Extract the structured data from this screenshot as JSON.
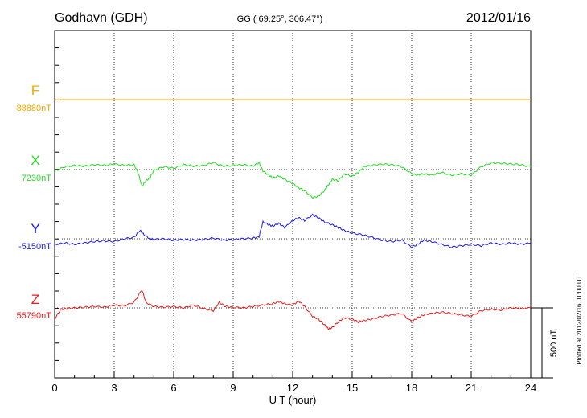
{
  "header": {
    "station": "Godhavn (GDH)",
    "coords": "GG ( 69.25°, 306.47°)",
    "date": "2012/01/16"
  },
  "side_note": "Plotted at 2012/02/16 01:00 UT",
  "scale_bar_label": "500 nT",
  "chart_data": {
    "type": "line",
    "xlabel": "U T (hour)",
    "x_ticks": [
      0,
      3,
      6,
      9,
      12,
      15,
      18,
      21,
      24
    ],
    "xlim": [
      0,
      24
    ],
    "scale_bar_nT": 500,
    "grid": "dotted vertical lines at every 3 hours",
    "series": [
      {
        "name": "F",
        "baseline_label": "88880nT",
        "color": "#f5a800",
        "points": [
          [
            0,
            0
          ],
          [
            24,
            0
          ]
        ]
      },
      {
        "name": "X",
        "baseline_label": "7230nT",
        "color": "#22dd22",
        "points": [
          [
            0,
            -10
          ],
          [
            0.5,
            20
          ],
          [
            1,
            30
          ],
          [
            1.5,
            25
          ],
          [
            2,
            35
          ],
          [
            2.5,
            30
          ],
          [
            3,
            40
          ],
          [
            3.5,
            30
          ],
          [
            4,
            35
          ],
          [
            4.2,
            -20
          ],
          [
            4.4,
            -120
          ],
          [
            4.6,
            -80
          ],
          [
            4.8,
            -60
          ],
          [
            5,
            -5
          ],
          [
            5.5,
            20
          ],
          [
            6,
            10
          ],
          [
            6.5,
            35
          ],
          [
            7,
            25
          ],
          [
            7.5,
            30
          ],
          [
            8,
            50
          ],
          [
            8.5,
            25
          ],
          [
            9,
            30
          ],
          [
            9.5,
            35
          ],
          [
            10,
            25
          ],
          [
            10.3,
            50
          ],
          [
            10.5,
            -10
          ],
          [
            10.8,
            -40
          ],
          [
            11,
            -60
          ],
          [
            11.3,
            -45
          ],
          [
            11.6,
            -70
          ],
          [
            12,
            -100
          ],
          [
            12.3,
            -130
          ],
          [
            12.6,
            -150
          ],
          [
            13,
            -200
          ],
          [
            13.3,
            -190
          ],
          [
            13.6,
            -150
          ],
          [
            13.8,
            -110
          ],
          [
            14,
            -70
          ],
          [
            14.3,
            -80
          ],
          [
            14.6,
            -30
          ],
          [
            15,
            -50
          ],
          [
            15.3,
            -20
          ],
          [
            15.6,
            20
          ],
          [
            16,
            30
          ],
          [
            16.5,
            40
          ],
          [
            17,
            35
          ],
          [
            17.5,
            20
          ],
          [
            18,
            -30
          ],
          [
            18.3,
            -40
          ],
          [
            18.6,
            -30
          ],
          [
            19,
            -40
          ],
          [
            19.5,
            -20
          ],
          [
            20,
            -40
          ],
          [
            20.5,
            -30
          ],
          [
            21,
            -40
          ],
          [
            21.5,
            20
          ],
          [
            22,
            50
          ],
          [
            22.5,
            45
          ],
          [
            23,
            40
          ],
          [
            23.5,
            35
          ],
          [
            24,
            20
          ]
        ]
      },
      {
        "name": "Y",
        "baseline_label": "-5150nT",
        "color": "#1a1aee",
        "points": [
          [
            0,
            -40
          ],
          [
            0.5,
            -30
          ],
          [
            1,
            -40
          ],
          [
            1.5,
            -30
          ],
          [
            2,
            -20
          ],
          [
            2.5,
            -15
          ],
          [
            3,
            -20
          ],
          [
            3.5,
            0
          ],
          [
            4,
            10
          ],
          [
            4.3,
            60
          ],
          [
            4.5,
            30
          ],
          [
            4.8,
            0
          ],
          [
            5,
            -5
          ],
          [
            5.5,
            0
          ],
          [
            6,
            -10
          ],
          [
            6.5,
            -5
          ],
          [
            7,
            -10
          ],
          [
            7.5,
            -5
          ],
          [
            8,
            5
          ],
          [
            8.5,
            -10
          ],
          [
            9,
            -5
          ],
          [
            9.5,
            0
          ],
          [
            10,
            5
          ],
          [
            10.3,
            15
          ],
          [
            10.5,
            120
          ],
          [
            10.8,
            100
          ],
          [
            11,
            90
          ],
          [
            11.3,
            110
          ],
          [
            11.6,
            80
          ],
          [
            12,
            130
          ],
          [
            12.3,
            150
          ],
          [
            12.6,
            130
          ],
          [
            13,
            170
          ],
          [
            13.3,
            150
          ],
          [
            13.6,
            120
          ],
          [
            14,
            100
          ],
          [
            14.3,
            80
          ],
          [
            14.6,
            60
          ],
          [
            15,
            40
          ],
          [
            15.5,
            30
          ],
          [
            16,
            10
          ],
          [
            16.5,
            -10
          ],
          [
            17,
            -20
          ],
          [
            17.5,
            -10
          ],
          [
            18,
            -60
          ],
          [
            18.3,
            -40
          ],
          [
            18.6,
            -10
          ],
          [
            19,
            -20
          ],
          [
            19.5,
            -40
          ],
          [
            20,
            -60
          ],
          [
            20.5,
            -50
          ],
          [
            21,
            -40
          ],
          [
            21.5,
            -50
          ],
          [
            22,
            -30
          ],
          [
            22.5,
            -40
          ],
          [
            23,
            -30
          ],
          [
            23.5,
            -40
          ],
          [
            24,
            -30
          ]
        ]
      },
      {
        "name": "Z",
        "baseline_label": "55790nT",
        "color": "#ee1a1a",
        "points": [
          [
            0,
            -80
          ],
          [
            0.3,
            -10
          ],
          [
            0.6,
            -5
          ],
          [
            1,
            0
          ],
          [
            1.5,
            5
          ],
          [
            2,
            10
          ],
          [
            2.5,
            5
          ],
          [
            3,
            20
          ],
          [
            3.5,
            15
          ],
          [
            4,
            40
          ],
          [
            4.4,
            130
          ],
          [
            4.6,
            40
          ],
          [
            5,
            10
          ],
          [
            5.5,
            5
          ],
          [
            6,
            10
          ],
          [
            6.5,
            0
          ],
          [
            7,
            20
          ],
          [
            7.5,
            -5
          ],
          [
            8,
            -20
          ],
          [
            8.3,
            40
          ],
          [
            8.6,
            10
          ],
          [
            9,
            5
          ],
          [
            9.5,
            0
          ],
          [
            10,
            10
          ],
          [
            10.5,
            20
          ],
          [
            11,
            30
          ],
          [
            11.3,
            45
          ],
          [
            11.6,
            30
          ],
          [
            12,
            20
          ],
          [
            12.3,
            50
          ],
          [
            12.6,
            10
          ],
          [
            13,
            -60
          ],
          [
            13.3,
            -80
          ],
          [
            13.6,
            -120
          ],
          [
            13.8,
            -150
          ],
          [
            14,
            -140
          ],
          [
            14.3,
            -100
          ],
          [
            14.6,
            -70
          ],
          [
            15,
            -80
          ],
          [
            15.3,
            -100
          ],
          [
            15.6,
            -90
          ],
          [
            16,
            -80
          ],
          [
            16.5,
            -60
          ],
          [
            17,
            -50
          ],
          [
            17.5,
            -40
          ],
          [
            18,
            -100
          ],
          [
            18.3,
            -70
          ],
          [
            18.6,
            -50
          ],
          [
            19,
            -40
          ],
          [
            19.5,
            -30
          ],
          [
            20,
            -40
          ],
          [
            20.5,
            -50
          ],
          [
            21,
            -60
          ],
          [
            21.5,
            -20
          ],
          [
            22,
            -10
          ],
          [
            22.5,
            -15
          ],
          [
            23,
            0
          ],
          [
            23.5,
            -5
          ],
          [
            24,
            0
          ]
        ]
      }
    ]
  }
}
